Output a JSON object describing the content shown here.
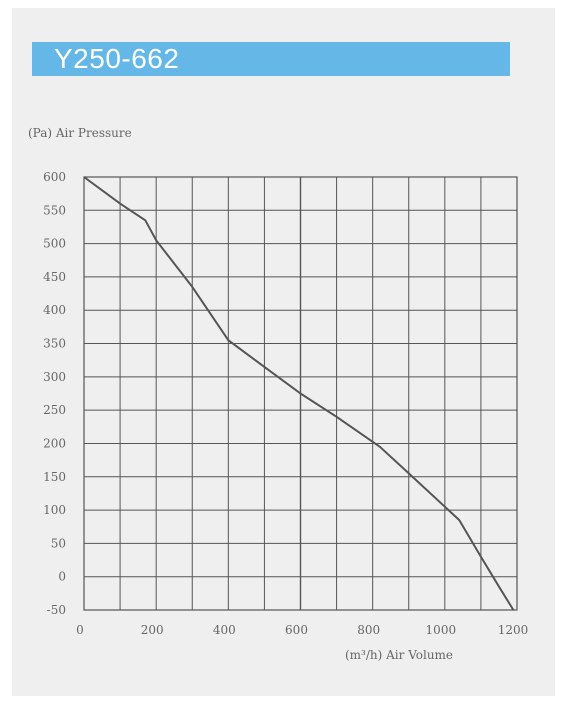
{
  "title": "Y250-662",
  "colors": {
    "title_bar": "#64b7e6",
    "title_text": "#ffffff",
    "background": "#efefef",
    "grid": "#555555",
    "curve": "#555555"
  },
  "chart_data": {
    "type": "line",
    "title": "Y250-662",
    "xlabel": "(m³/h) Air Volume",
    "ylabel": "(Pa) Air Pressure",
    "xlim": [
      0,
      1200
    ],
    "ylim": [
      -50,
      600
    ],
    "x_ticks": [
      0,
      200,
      400,
      600,
      800,
      1000,
      1200
    ],
    "y_ticks": [
      -50,
      0,
      50,
      100,
      150,
      200,
      250,
      300,
      350,
      400,
      450,
      500,
      550,
      600
    ],
    "grid": true,
    "series": [
      {
        "x": [
          0,
          100,
          170,
          200,
          300,
          400,
          500,
          600,
          700,
          820,
          900,
          1000,
          1040,
          1100,
          1150,
          1190
        ],
        "y": [
          600,
          560,
          535,
          505,
          435,
          355,
          315,
          275,
          240,
          195,
          155,
          105,
          85,
          30,
          -15,
          -50
        ]
      }
    ]
  }
}
